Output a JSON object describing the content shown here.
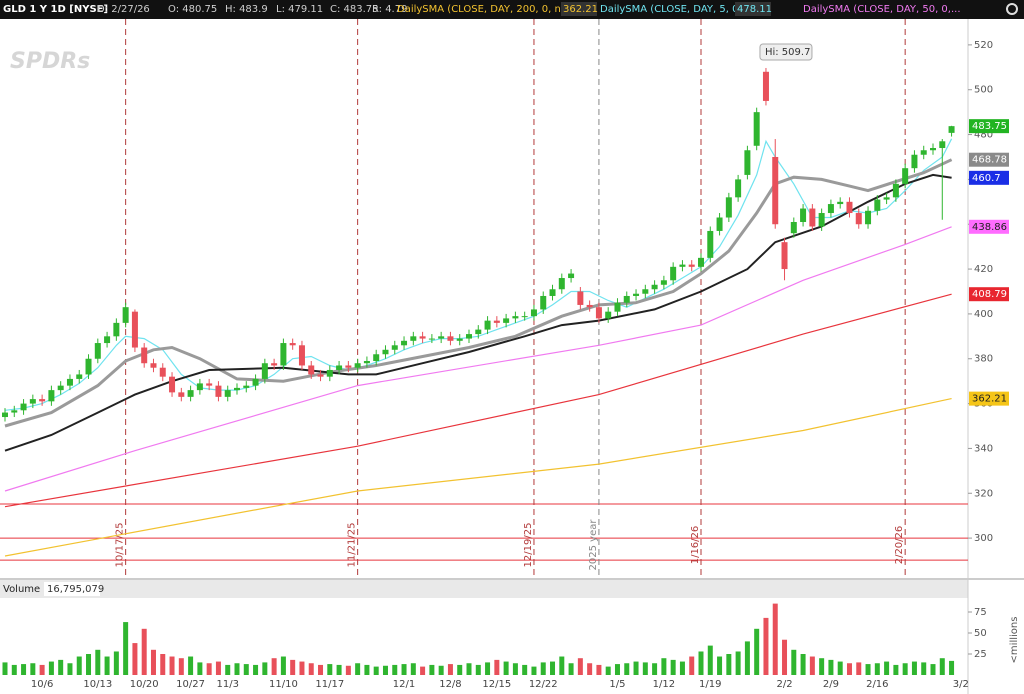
{
  "header": {
    "symbol": "GLD 1 Y 1D [NYSE]",
    "fields": [
      "D: 2/27/26",
      "O: 480.75",
      "H: 483.9",
      "L: 479.11",
      "C: 483.75",
      "R: 4.79"
    ]
  },
  "chart_data": [
    {
      "type": "candlestick",
      "watermark": "SPDRs",
      "up_color": "#2fb52f",
      "down_color": "#e8505a",
      "ylim": [
        282.2,
        531.1
      ],
      "yticks": [
        300,
        320,
        340,
        360,
        380,
        400,
        420,
        440,
        460,
        480,
        500,
        520
      ],
      "open": [
        354,
        356,
        357,
        360,
        362,
        361,
        366,
        368,
        371,
        373,
        380,
        387,
        390,
        396,
        401,
        385,
        378,
        376,
        372,
        365,
        363,
        366,
        369,
        368,
        363,
        366,
        367,
        368,
        371,
        378,
        377,
        387,
        386,
        377,
        373,
        372,
        375,
        377,
        376,
        378,
        379,
        382,
        384,
        386,
        388,
        390,
        389,
        389,
        390,
        388,
        389,
        391,
        393,
        397,
        396,
        398,
        399,
        399,
        402,
        408,
        411,
        416,
        410,
        404,
        403,
        398,
        401,
        405,
        408,
        409,
        411,
        413,
        415,
        421,
        422,
        421,
        425,
        437,
        443,
        452,
        462,
        475,
        508,
        470,
        432,
        436,
        441,
        447,
        439,
        445,
        449,
        450,
        445,
        440,
        446,
        451,
        452,
        458,
        465,
        471,
        473,
        474,
        480.75,
        null
      ],
      "high": [
        358,
        359,
        362,
        364,
        364,
        368,
        370,
        373,
        375,
        382,
        389,
        392,
        398,
        405,
        402,
        387,
        380,
        378,
        374,
        367,
        368,
        371,
        371,
        370,
        368,
        369,
        370,
        373,
        380,
        380,
        389,
        389,
        388,
        379,
        375,
        377,
        379,
        379,
        380,
        381,
        384,
        386,
        388,
        390,
        392,
        392,
        391,
        392,
        392,
        391,
        393,
        395,
        399,
        399,
        400,
        401,
        401,
        404,
        410,
        413,
        418,
        420,
        412,
        406,
        405,
        403,
        407,
        410,
        411,
        413,
        415,
        417,
        423,
        424,
        424,
        427,
        439,
        445,
        454,
        462,
        475,
        492,
        509.7,
        478,
        434,
        443,
        449,
        449,
        447,
        451,
        452,
        452,
        447,
        448,
        453,
        454,
        460,
        467,
        473,
        475,
        476,
        478,
        483.9,
        null
      ],
      "low": [
        352,
        354,
        355,
        358,
        359,
        359,
        364,
        366,
        369,
        371,
        378,
        385,
        388,
        394,
        383,
        376,
        374,
        370,
        363,
        361,
        361,
        364,
        366,
        361,
        361,
        364,
        365,
        366,
        369,
        375,
        375,
        384,
        375,
        371,
        370,
        370,
        373,
        374,
        374,
        376,
        377,
        380,
        382,
        384,
        386,
        387,
        387,
        387,
        386,
        386,
        387,
        389,
        391,
        394,
        394,
        396,
        397,
        397,
        400,
        406,
        409,
        414,
        402,
        401,
        396,
        396,
        399,
        403,
        406,
        407,
        409,
        411,
        413,
        419,
        419,
        419,
        423,
        435,
        441,
        450,
        460,
        473,
        493,
        438,
        415,
        434,
        439,
        437,
        437,
        443,
        447,
        443,
        438,
        438,
        444,
        449,
        450,
        456,
        463,
        469,
        471,
        442,
        479.11,
        null
      ],
      "close": [
        356,
        357,
        360,
        362,
        361,
        366,
        368,
        371,
        373,
        380,
        387,
        390,
        396,
        403,
        385,
        378,
        376,
        372,
        365,
        363,
        366,
        369,
        368,
        363,
        366,
        367,
        368,
        371,
        378,
        377,
        387,
        386,
        377,
        373,
        372,
        375,
        377,
        376,
        378,
        379,
        382,
        384,
        386,
        388,
        390,
        389,
        389,
        390,
        388,
        389,
        391,
        393,
        397,
        396,
        398,
        399,
        399,
        402,
        408,
        411,
        416,
        418,
        404,
        403,
        398,
        401,
        405,
        408,
        409,
        411,
        413,
        415,
        421,
        422,
        421,
        425,
        437,
        443,
        452,
        460,
        473,
        490,
        495,
        440,
        420,
        441,
        447,
        439,
        445,
        449,
        450,
        445,
        440,
        446,
        451,
        452,
        458,
        465,
        471,
        473,
        474,
        477,
        483.75,
        null
      ],
      "close_tag_color": "#22b422",
      "lines": [
        {
          "name": "DailySMA (CLOSE, DAY, 200, 0, no)",
          "color": "#f2c230",
          "width": 1.2,
          "tag_color": "#f5c518",
          "x": [
            0,
            38,
            64,
            86,
            102
          ],
          "values": [
            292,
            321,
            333,
            348,
            362.21
          ]
        },
        {
          "name": "DailySMA (CLOSE, DAY, 5, 0, no)",
          "color": "#6fe3ef",
          "width": 1.2,
          "x": [
            0,
            2,
            4,
            6,
            8,
            10,
            12,
            13,
            15,
            17,
            19,
            21,
            23,
            25,
            27,
            29,
            31,
            33,
            35,
            37,
            39,
            41,
            43,
            45,
            47,
            49,
            51,
            53,
            55,
            57,
            59,
            61,
            63,
            65,
            67,
            69,
            71,
            73,
            75,
            77,
            79,
            81,
            82,
            83,
            85,
            87,
            89,
            91,
            93,
            95,
            97,
            99,
            101,
            102
          ],
          "values": [
            357,
            358,
            360,
            364,
            369,
            376,
            386,
            390,
            389,
            384,
            373,
            367,
            366,
            366,
            368,
            373,
            380,
            381,
            377,
            375,
            377,
            380,
            384,
            387,
            389,
            389,
            390,
            393,
            396,
            399,
            404,
            410,
            410,
            406,
            403,
            407,
            411,
            416,
            421,
            430,
            444,
            462,
            477,
            470,
            458,
            443,
            443,
            446,
            445,
            447,
            455,
            464,
            470,
            478.11
          ]
        },
        {
          "name": "DailySMA (CLOSE, DAY, 50, 0,...",
          "color": "#f07af0",
          "width": 1.2,
          "tag_color": "#ff6cff",
          "x": [
            0,
            14,
            38,
            64,
            75,
            86,
            97,
            102
          ],
          "values": [
            321,
            339,
            368,
            386,
            395,
            415,
            431,
            438.86
          ]
        },
        {
          "color": "#e8343c",
          "width": 1.2,
          "tag_color": "#e8262f",
          "x": [
            0,
            38,
            64,
            86,
            102
          ],
          "values": [
            314,
            341,
            364,
            391,
            408.79
          ]
        },
        {
          "color": "#9a9a9a",
          "width": 3,
          "tag_color": "#8a8a8a",
          "x": [
            0,
            5,
            10,
            13,
            16,
            18,
            21,
            25,
            30,
            35,
            40,
            45,
            50,
            55,
            60,
            64,
            68,
            72,
            75,
            78,
            81,
            83,
            85,
            88,
            91,
            93,
            96,
            99,
            102
          ],
          "values": [
            350,
            356,
            368,
            379,
            384,
            385,
            380,
            371,
            370,
            374,
            377,
            381,
            385,
            390,
            399,
            404,
            405,
            410,
            418,
            428,
            445,
            458,
            461,
            460,
            457,
            455,
            459,
            463,
            468.78
          ]
        },
        {
          "color": "#222222",
          "width": 2,
          "tag_color": "#1a2ee6",
          "x": [
            0,
            5,
            10,
            14,
            18,
            22,
            30,
            37,
            40,
            45,
            50,
            56,
            60,
            64,
            70,
            75,
            80,
            83,
            88,
            93,
            97,
            100,
            102
          ],
          "values": [
            339,
            346,
            356,
            364,
            370,
            375,
            376,
            373,
            373,
            378,
            383,
            390,
            395,
            397,
            402,
            410,
            420,
            432,
            439,
            450,
            458,
            462,
            460.7
          ]
        }
      ],
      "hlines": {
        "color": "#e8343c",
        "values": [
          315.2,
          300,
          290.2
        ]
      },
      "events": [
        {
          "label": "10/17/25",
          "x": 13,
          "color": "#b23a3a"
        },
        {
          "label": "11/21/25",
          "x": 38,
          "color": "#b23a3a"
        },
        {
          "label": "12/19/25",
          "x": 57,
          "color": "#b23a3a"
        },
        {
          "label": "2025 year",
          "x": 64,
          "color": "#888888"
        },
        {
          "label": "1/16/26",
          "x": 75,
          "color": "#b23a3a"
        },
        {
          "label": "2/20/26",
          "x": 97,
          "color": "#b23a3a"
        }
      ],
      "annotation": {
        "label": "Hi: 509.7",
        "x": 82,
        "value": 509.7
      }
    },
    {
      "type": "bar",
      "title": "Volume",
      "subtitle": "16,795,079",
      "ylabel": "<millions",
      "ylim": [
        0,
        89.3
      ],
      "yticks": [
        25,
        50,
        75
      ],
      "categories": [
        null,
        null,
        null,
        null,
        "10/6",
        null,
        null,
        null,
        null,
        null,
        "10/13",
        null,
        null,
        null,
        null,
        "10/20",
        null,
        null,
        null,
        null,
        "10/27",
        null,
        null,
        null,
        "11/3",
        null,
        null,
        null,
        null,
        null,
        "11/10",
        null,
        null,
        null,
        null,
        "11/17",
        null,
        null,
        null,
        null,
        null,
        null,
        null,
        "12/1",
        null,
        null,
        null,
        null,
        "12/8",
        null,
        null,
        null,
        null,
        "12/15",
        null,
        null,
        null,
        null,
        "12/22",
        null,
        null,
        null,
        null,
        null,
        null,
        null,
        "1/5",
        null,
        null,
        null,
        null,
        "1/12",
        null,
        null,
        null,
        null,
        "1/19",
        null,
        null,
        null,
        null,
        null,
        null,
        null,
        "2/2",
        null,
        null,
        null,
        null,
        "2/9",
        null,
        null,
        null,
        null,
        "2/16",
        null,
        null,
        null,
        null,
        null,
        null,
        null,
        null,
        "3/2"
      ],
      "values": [
        15,
        12,
        13,
        14,
        12,
        16,
        18,
        14,
        22,
        25,
        30,
        22,
        28,
        63,
        38,
        55,
        30,
        25,
        22,
        20,
        22,
        15,
        14,
        16,
        12,
        14,
        13,
        12,
        15,
        20,
        22,
        18,
        16,
        14,
        12,
        13,
        12,
        11,
        14,
        12,
        10,
        11,
        12,
        13,
        14,
        10,
        12,
        11,
        13,
        12,
        14,
        12,
        15,
        18,
        16,
        14,
        12,
        10,
        15,
        16,
        22,
        14,
        20,
        14,
        12,
        10,
        13,
        14,
        16,
        15,
        14,
        20,
        18,
        16,
        22,
        28,
        35,
        22,
        25,
        28,
        40,
        55,
        68,
        85,
        42,
        30,
        25,
        22,
        20,
        18,
        16,
        14,
        15,
        13,
        14,
        16,
        12,
        14,
        16,
        15,
        13,
        20,
        16.795079,
        null
      ]
    }
  ]
}
